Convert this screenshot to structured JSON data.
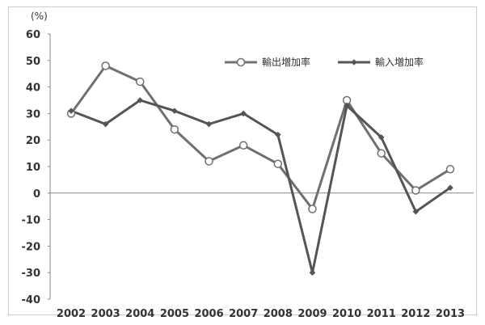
{
  "chart_data": {
    "type": "line",
    "title": "",
    "xlabel": "",
    "ylabel": "",
    "y_unit_label": "(%)",
    "categories": [
      "2002",
      "2003",
      "2004",
      "2005",
      "2006",
      "2007",
      "2008",
      "2009",
      "2010",
      "2011",
      "2012",
      "2013"
    ],
    "ylim": [
      -40,
      60
    ],
    "y_ticks": [
      60,
      50,
      40,
      30,
      20,
      10,
      0,
      -10,
      -20,
      -30,
      -40
    ],
    "grid": false,
    "legend_position": "top-right",
    "series": [
      {
        "name": "輸出増加率",
        "marker": "open-circle",
        "color": "#707070",
        "values": [
          30,
          48,
          42,
          24,
          12,
          18,
          11,
          -6,
          35,
          15,
          1,
          9
        ]
      },
      {
        "name": "輸入増加率",
        "marker": "filled-diamond",
        "color": "#555555",
        "values": [
          31,
          26,
          35,
          31,
          26,
          30,
          22,
          -30,
          33,
          21,
          -7,
          2
        ]
      }
    ]
  }
}
